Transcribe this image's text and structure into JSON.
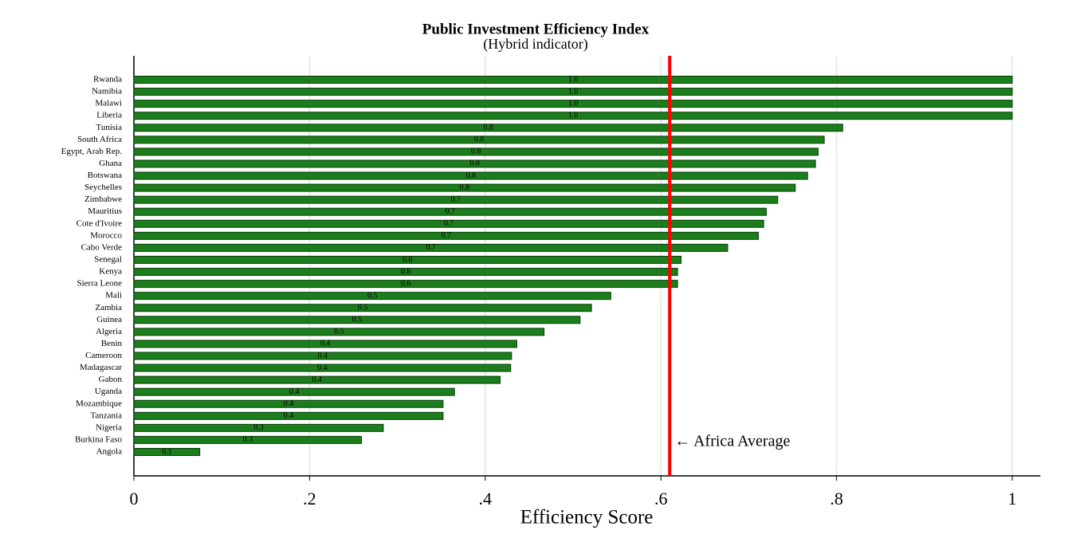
{
  "chart_data": {
    "type": "bar",
    "orientation": "horizontal",
    "title": "Public Investment Efficiency Index",
    "subtitle": "(Hybrid indicator)",
    "x_label": "Efficiency Score",
    "categories": [
      "Rwanda",
      "Namibia",
      "Malawi",
      "Liberia",
      "Tunisia",
      "South Africa",
      "Egypt, Arab Rep.",
      "Ghana",
      "Botswana",
      "Seychelles",
      "Zimbabwe",
      "Mauritius",
      "Cote d'Ivoire",
      "Morocco",
      "Cabo Verde",
      "Senegal",
      "Kenya",
      "Sierra Leone",
      "Mali",
      "Zambia",
      "Guinea",
      "Algeria",
      "Benin",
      "Cameroon",
      "Madagascar",
      "Gabon",
      "Uganda",
      "Mozambique",
      "Tanzania",
      "Nigeria",
      "Burkina Faso",
      "Angola"
    ],
    "values": [
      1.0,
      1.0,
      1.0,
      1.0,
      0.807,
      0.786,
      0.779,
      0.776,
      0.767,
      0.753,
      0.733,
      0.72,
      0.717,
      0.711,
      0.676,
      0.623,
      0.619,
      0.619,
      0.543,
      0.521,
      0.508,
      0.467,
      0.436,
      0.43,
      0.429,
      0.417,
      0.365,
      0.352,
      0.352,
      0.284,
      0.259,
      0.075
    ],
    "value_labels": [
      "1.0",
      "1.0",
      "1.0",
      "1.0",
      "0.8",
      "0.8",
      "0.8",
      "0.8",
      "0.8",
      "0.8",
      "0.7",
      "0.7",
      "0.7",
      "0.7",
      "0.7",
      "0.6",
      "0.6",
      "0.6",
      "0.5",
      "0.5",
      "0.5",
      "0.5",
      "0.4",
      "0.4",
      "0.4",
      "0.4",
      "0.4",
      "0.4",
      "0.4",
      "0.3",
      "0.3",
      "0.1"
    ],
    "color": "#1b7d1b",
    "xlim": [
      0,
      1.032
    ],
    "xticks": [
      0,
      {
        "value": 0.2,
        "label": ".2"
      },
      {
        "value": 0.4,
        "label": ".4"
      },
      {
        "value": 0.6,
        "label": ".6"
      },
      {
        "value": 0.8,
        "label": ".8"
      },
      1
    ],
    "grid": true,
    "reference_line": {
      "value": 0.61,
      "label": "← Africa Average",
      "color": "#ff0000"
    }
  }
}
